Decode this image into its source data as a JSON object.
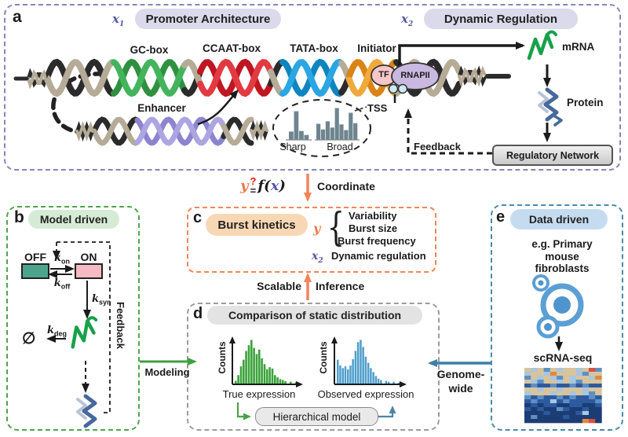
{
  "panel_a": {
    "label": "a",
    "x1": "x",
    "x1_sub": "1",
    "promoter_pill": "Promoter Architecture",
    "x2": "x",
    "x2_sub": "2",
    "dynamic_pill": "Dynamic Regulation",
    "gc_box": "GC-box",
    "ccaat_box": "CCAAT-box",
    "tata_box": "TATA-box",
    "initiator": "Initiator",
    "enhancer": "Enhancer",
    "tf": "TF",
    "rnapii": "RNAPII",
    "tss": "TSS",
    "sharp": "Sharp",
    "broad": "Broad",
    "feedback": "Feedback",
    "mrna": "mRNA",
    "protein": "Protein",
    "regulatory_network": "Regulatory Network"
  },
  "formula": {
    "y": "y",
    "question": "?",
    "equals": "=",
    "f": "f(",
    "x": "x",
    "close": ")"
  },
  "panel_b": {
    "label": "b",
    "title": "Model driven",
    "off": "OFF",
    "on": "ON",
    "k": "k",
    "k_on_sub": "on",
    "k_off_sub": "off",
    "k_syn_sub": "syn",
    "k_deg_sub": "deg",
    "phi": "∅",
    "feedback": "Feedback"
  },
  "panel_c": {
    "label": "c",
    "title": "Burst kinetics",
    "y": "y",
    "brace": "{",
    "items": [
      "Variability",
      "Burst size",
      "Burst frequency"
    ],
    "x": "x",
    "x_sub": "2",
    "dynamic": "Dynamic regulation"
  },
  "panel_d": {
    "label": "d",
    "title": "Comparison of static distribution",
    "counts_left": "Counts",
    "counts_right": "Counts",
    "true_label": "True expression",
    "observed_label": "Observed expression",
    "hierarchical": "Hierarchical model"
  },
  "panel_e": {
    "label": "e",
    "title": "Data driven",
    "line1": "e.g. Primary",
    "line2": "mouse",
    "line3": "fibroblasts",
    "scrna": "scRNA-seq",
    "heatmap": {
      "palette": {
        "t": "#d8c49c",
        "l": "#a8c6de",
        "b": "#5e8fc4",
        "d": "#2d5a9e",
        "n": "#1b3c74",
        "o": "#e08a3c",
        "r": "#d94f3f",
        "w": "#e8e2d4"
      },
      "rows": [
        "tltbtlttltrb",
        "lttlotttlbtt",
        "btltlbtlttlo",
        "tlbttltlbttt",
        "dbddbddbdbdd",
        "ttlttltttltt",
        "ltttlttltlbt",
        "bdbddbdbddbd",
        "dbddldbddddb",
        "ndnddnnddnnd",
        "dndnnbdnndnn",
        "nnndnnnndlnn",
        "nbnnnndnnnnn",
        "nnnnnnnnnorn"
      ]
    }
  },
  "connectors": {
    "coordinate": "Coordinate",
    "scalable": "Scalable",
    "inference": "Inference",
    "modeling": "Modeling",
    "genome_line1": "Genome-",
    "genome_line2": "wide"
  },
  "colors": {
    "panel_a_border": "#8585bb",
    "panel_b_border": "#4ca64c",
    "panel_c_border": "#f08658",
    "panel_d_border": "#9c9c9c",
    "panel_e_border": "#4a89ab",
    "mrna_green": "#18a14b",
    "protein_blue": "#47699c",
    "off_box": "#4da48c",
    "on_box": "#f5bac3",
    "tf_fill": "#f7c6c9",
    "rnapii_fill": "#c9b8e0",
    "true_hist": "#3aa23a",
    "observed_hist": "#4d9ecb",
    "accent_orange": "#e87c4e",
    "question_red": "#e01818",
    "math_purple": "#5558a8"
  },
  "chart_data": [
    {
      "type": "bar",
      "title": "Sharp",
      "values": [
        0.28,
        1,
        0.3,
        0.16
      ],
      "color": "#6e8590"
    },
    {
      "type": "bar",
      "title": "Broad",
      "values": [
        0.5,
        0.32,
        0.58,
        0.38,
        1,
        0.48,
        0.3,
        0.85,
        0.52
      ],
      "color": "#6e8590"
    },
    {
      "type": "bar",
      "xlabel": "True expression",
      "ylabel": "Counts",
      "values": [
        0.07,
        0.2,
        0.4,
        0.55,
        0.75,
        0.88,
        1,
        0.82,
        0.68,
        0.78,
        0.58,
        0.45,
        0.33,
        0.38,
        0.35,
        0.2,
        0.15,
        0.11,
        0.09,
        0.06,
        0,
        0.05,
        0,
        0.04
      ],
      "color": "#3aa23a"
    },
    {
      "type": "bar",
      "xlabel": "Observed expression",
      "ylabel": "Counts",
      "values": [
        0.55,
        0.42,
        0.36,
        0.4,
        0.33,
        0.42,
        0.56,
        0.75,
        0.95,
        1,
        0.84,
        0.62,
        0.48,
        0.36,
        0.27,
        0.18,
        0.12,
        0.09,
        0,
        0.07,
        0.05,
        0,
        0.05,
        0,
        0.03
      ],
      "color": "#4d9ecb"
    }
  ]
}
